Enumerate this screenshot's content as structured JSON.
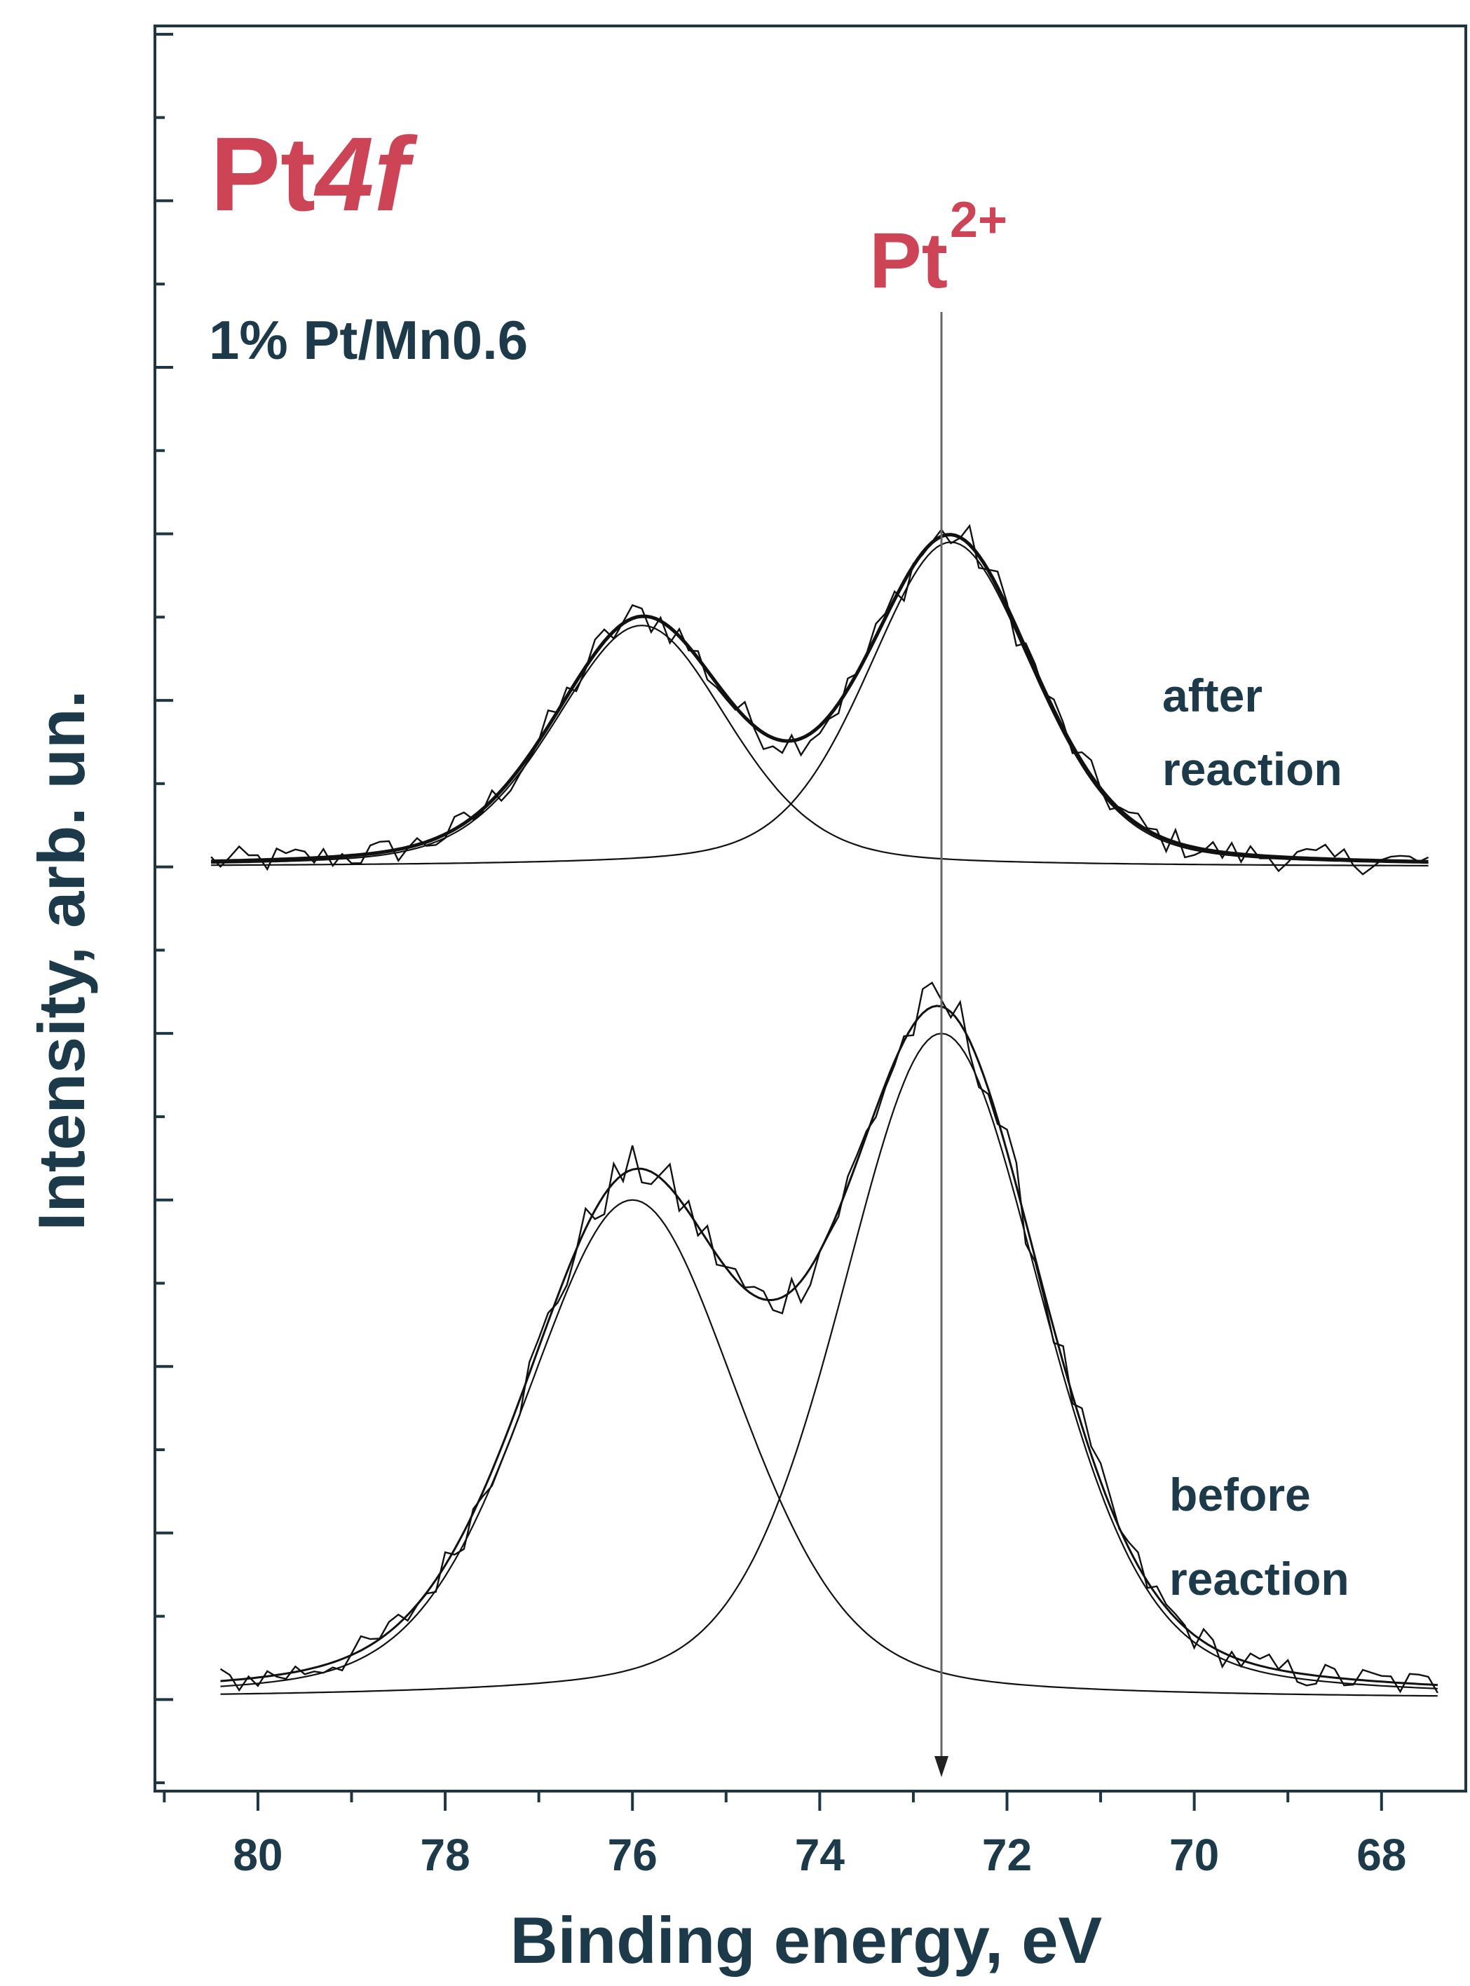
{
  "colors": {
    "title": "#cc4455",
    "text": "#1c3a4a",
    "frame": "#1e3644",
    "trace": "#111111"
  },
  "chart_data": {
    "type": "line",
    "title": "Pt4f",
    "title_prefix": "Pt",
    "title_italic": "4f",
    "sample_label": "1% Pt/Mn0.6",
    "marker_label": "Pt",
    "marker_superscript": "2+",
    "marker_energy": 72.7,
    "xlabel": "Binding energy, eV",
    "ylabel": "Intensity, arb. un.",
    "xlim": [
      81.1,
      67.1
    ],
    "x_reversed": true,
    "x_ticks": [
      "80",
      "78",
      "76",
      "74",
      "72",
      "70",
      "68"
    ],
    "x_tick_values": [
      80,
      78,
      76,
      74,
      72,
      70,
      68
    ],
    "ylim": [
      -0.55,
      10.05
    ],
    "y_major_ticks": [
      0,
      1,
      2,
      3,
      4,
      5,
      6,
      7,
      8,
      9,
      10
    ],
    "y_tick_labels_visible": false,
    "series": [
      {
        "name": "after reaction",
        "label_line1": "after",
        "label_line2": "reaction",
        "baseline": 5,
        "x_range": [
          80.5,
          67.5
        ],
        "peaks": [
          {
            "center": 75.9,
            "height": 1.45,
            "fwhm": 2.2
          },
          {
            "center": 72.6,
            "height": 1.95,
            "fwhm": 2.1
          }
        ]
      },
      {
        "name": "before reaction",
        "label_line1": "before",
        "label_line2": "reaction",
        "baseline": 0,
        "x_range": [
          80.4,
          67.4
        ],
        "peaks": [
          {
            "center": 76.0,
            "height": 3.0,
            "fwhm": 2.7
          },
          {
            "center": 72.7,
            "height": 4.0,
            "fwhm": 2.55
          }
        ]
      }
    ]
  }
}
